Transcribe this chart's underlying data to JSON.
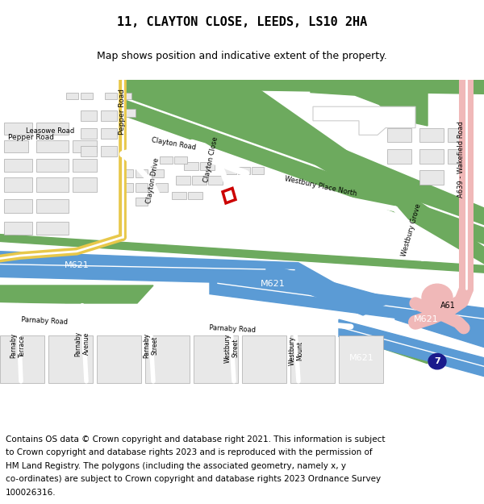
{
  "title": "11, CLAYTON CLOSE, LEEDS, LS10 2HA",
  "subtitle": "Map shows position and indicative extent of the property.",
  "footer_lines": [
    "Contains OS data © Crown copyright and database right 2021. This information is subject",
    "to Crown copyright and database rights 2023 and is reproduced with the permission of",
    "HM Land Registry. The polygons (including the associated geometry, namely x, y",
    "co-ordinates) are subject to Crown copyright and database rights 2023 Ordnance Survey",
    "100026316."
  ],
  "title_fontsize": 11,
  "subtitle_fontsize": 9,
  "footer_fontsize": 7.5,
  "map_bg": "#f8f8f8",
  "green_color": "#6daa5e",
  "blue_road_color": "#5b9bd5",
  "yellow_road": "#e8c84a",
  "pink_road": "#f0b8b8",
  "white_road": "#ffffff",
  "gray_outline": "#cccccc",
  "red_marker": "#cc0000",
  "building_fill": "#e8e8e8",
  "building_outline": "#aaaaaa"
}
